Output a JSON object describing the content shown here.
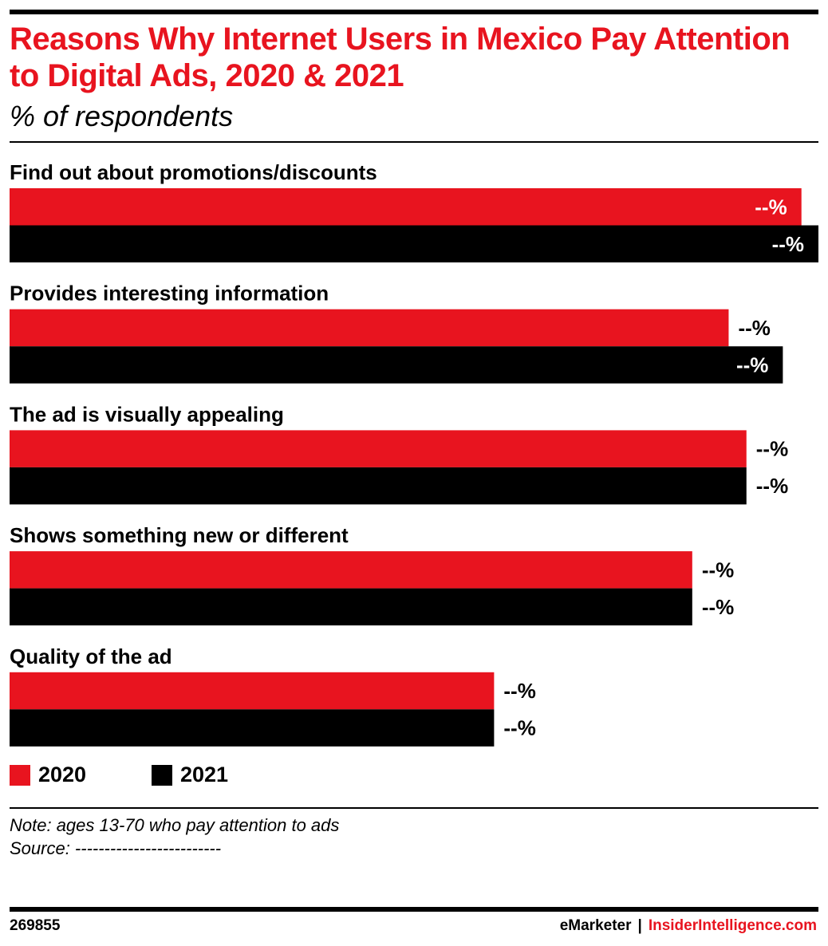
{
  "title": "Reasons Why Internet Users in Mexico Pay Attention to Digital Ads, 2020 & 2021",
  "subtitle": "% of respondents",
  "colors": {
    "accent": "#e8141f",
    "series_2020": "#e8141f",
    "series_2021": "#000000"
  },
  "chart_data": {
    "type": "bar",
    "orientation": "horizontal",
    "categories": [
      "Find out about promotions/discounts",
      "Provides interesting information",
      "The ad is visually appealing",
      "Shows something new or different",
      "Quality of the ad"
    ],
    "series": [
      {
        "name": "2020",
        "color": "#e8141f",
        "values": [
          97.9,
          88.9,
          91.1,
          84.4,
          59.9
        ],
        "labels": [
          "--%",
          "--%",
          "--%",
          "--%",
          "--%"
        ]
      },
      {
        "name": "2021",
        "color": "#000000",
        "values": [
          100,
          95.6,
          91.1,
          84.4,
          59.9
        ],
        "labels": [
          "--%",
          "--%",
          "--%",
          "--%",
          "--%"
        ]
      }
    ],
    "xlim": [
      0,
      100
    ],
    "grid": false,
    "legend_position": "bottom-left",
    "value_labels_note": "values not printed; shown as \"--%\""
  },
  "legend": [
    {
      "label": "2020",
      "color": "#e8141f"
    },
    {
      "label": "2021",
      "color": "#000000"
    }
  ],
  "note": "Note: ages 13-70 who pay attention to ads",
  "source": "Source: -------------------------",
  "footer": {
    "chart_id": "269855",
    "brand": "eMarketer",
    "separator": "|",
    "site": "InsiderIntelligence.com"
  }
}
